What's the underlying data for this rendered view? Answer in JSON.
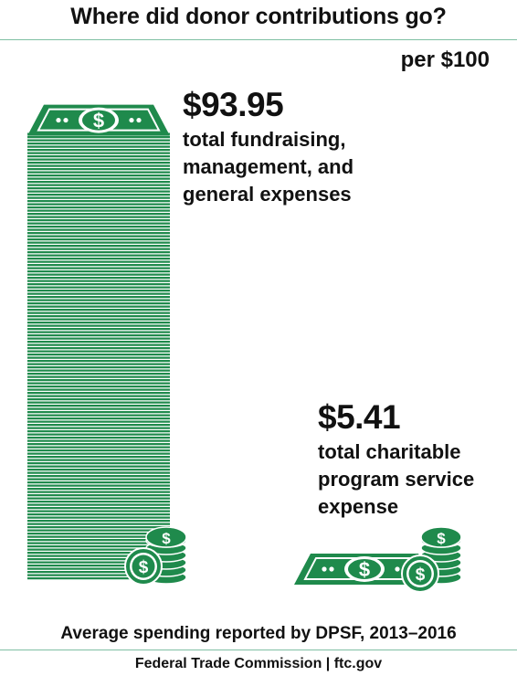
{
  "title": "Where did donor contributions go?",
  "unit_label": "per $100",
  "footnote": "Average spending reported by DPSF, 2013–2016",
  "source": "Federal Trade Commission | ftc.gov",
  "colors": {
    "green": "#1f8a4c",
    "rule": "#7fbfa3"
  },
  "chart_data": {
    "type": "bar",
    "title": "Where did donor contributions go?",
    "unit": "per $100",
    "categories": [
      "total fundraising, management, and general expenses",
      "total charitable program service expense"
    ],
    "values": [
      93.95,
      5.41
    ],
    "value_labels": [
      "$93.95",
      "$5.41"
    ],
    "label_lines": [
      [
        "total fundraising,",
        "management, and",
        "general expenses"
      ],
      [
        "total charitable",
        "program service",
        "expense"
      ]
    ],
    "ylim": [
      0,
      100
    ],
    "grid": false
  }
}
